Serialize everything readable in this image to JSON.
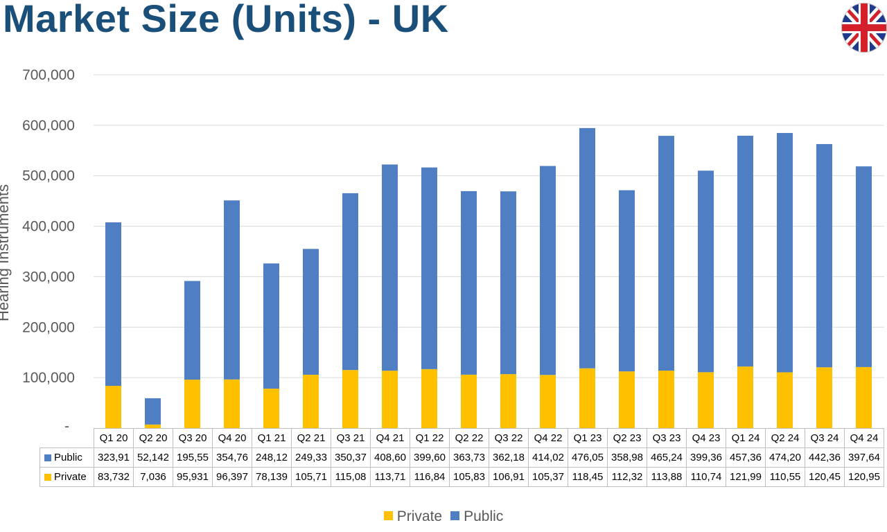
{
  "title": "Market Size (Units) - UK",
  "flag_icon": "uk-flag-icon",
  "colors": {
    "private": "#ffc000",
    "public": "#4f7fc2",
    "title": "#1a4f7a"
  },
  "chart_data": {
    "type": "bar",
    "stacked": true,
    "title": "Market Size (Units) - UK",
    "ylabel": "Hearing Instruments",
    "ylim": [
      0,
      700000
    ],
    "y_ticks": [
      "-",
      "100,000",
      "200,000",
      "300,000",
      "400,000",
      "500,000",
      "600,000",
      "700,000"
    ],
    "grid": true,
    "legend_position": "bottom",
    "categories": [
      "Q1 20",
      "Q2 20",
      "Q3 20",
      "Q4 20",
      "Q1 21",
      "Q2 21",
      "Q3 21",
      "Q4 21",
      "Q1 22",
      "Q2 22",
      "Q3 22",
      "Q4 22",
      "Q1 23",
      "Q2 23",
      "Q3 23",
      "Q4 23",
      "Q1 24",
      "Q2 24",
      "Q3 24",
      "Q4 24"
    ],
    "series": [
      {
        "name": "Private",
        "color": "#ffc000",
        "values": [
          83732,
          7036,
          95931,
          96397,
          78139,
          105710,
          115080,
          113710,
          116840,
          105830,
          106910,
          105370,
          118450,
          112320,
          113880,
          110740,
          121990,
          110550,
          120450,
          120950
        ],
        "table_labels": [
          "83,732",
          "7,036",
          "95,931",
          "96,397",
          "78,139",
          "105,71",
          "115,08",
          "113,71",
          "116,84",
          "105,83",
          "106,91",
          "105,37",
          "118,45",
          "112,32",
          "113,88",
          "110,74",
          "121,99",
          "110,55",
          "120,45",
          "120,95"
        ]
      },
      {
        "name": "Public",
        "color": "#4f7fc2",
        "values": [
          323910,
          52142,
          195550,
          354760,
          248120,
          249330,
          350370,
          408600,
          399600,
          363730,
          362180,
          414020,
          476050,
          358980,
          465240,
          399360,
          457360,
          474200,
          442360,
          397640
        ],
        "table_labels": [
          "323,91",
          "52,142",
          "195,55",
          "354,76",
          "248,12",
          "249,33",
          "350,37",
          "408,60",
          "399,60",
          "363,73",
          "362,18",
          "414,02",
          "476,05",
          "358,98",
          "465,24",
          "399,36",
          "457,36",
          "474,20",
          "442,36",
          "397,64"
        ]
      }
    ]
  }
}
